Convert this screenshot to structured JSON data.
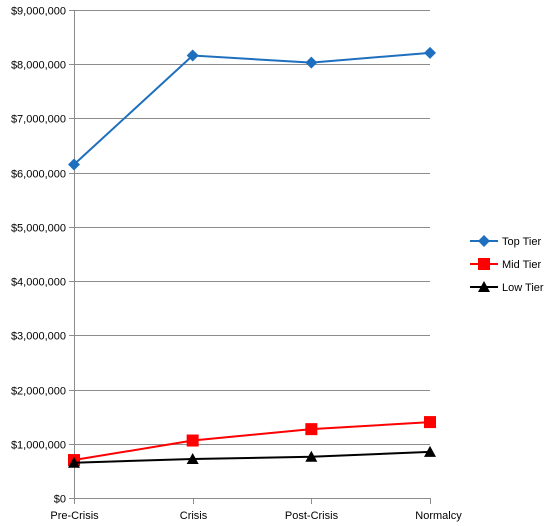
{
  "chart_data": {
    "type": "line",
    "title": "",
    "xlabel": "",
    "ylabel": "",
    "categories": [
      "Pre-Crisis",
      "Crisis",
      "Post-Crisis",
      "Normalcy"
    ],
    "ylim": [
      0,
      9000000
    ],
    "ytick_values": [
      0,
      1000000,
      2000000,
      3000000,
      4000000,
      5000000,
      6000000,
      7000000,
      8000000,
      9000000
    ],
    "ytick_labels": [
      "$0",
      "$1,000,000",
      "$2,000,000",
      "$3,000,000",
      "$4,000,000",
      "$5,000,000",
      "$6,000,000",
      "$7,000,000",
      "$8,000,000",
      "$9,000,000"
    ],
    "grid": "horizontal",
    "legend_position": "right",
    "series": [
      {
        "name": "Top Tier",
        "color": "#1f6fbf",
        "marker": "diamond",
        "values": [
          6150000,
          8160000,
          8030000,
          8210000
        ]
      },
      {
        "name": "Mid Tier",
        "color": "#ff0000",
        "marker": "square",
        "values": [
          700000,
          1060000,
          1270000,
          1400000
        ]
      },
      {
        "name": "Low Tier",
        "color": "#000000",
        "marker": "triangle",
        "values": [
          650000,
          720000,
          760000,
          850000
        ]
      }
    ]
  }
}
